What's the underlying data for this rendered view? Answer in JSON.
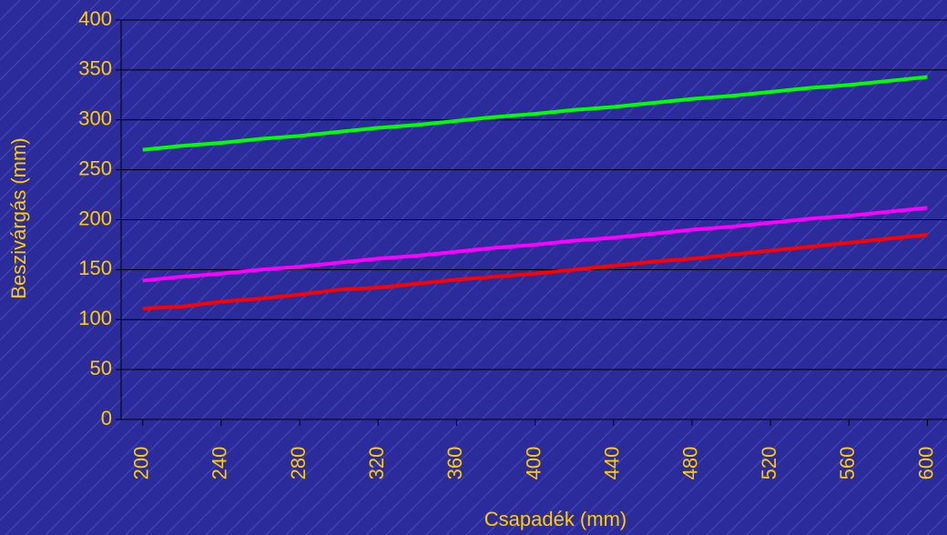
{
  "chart_data": {
    "type": "line",
    "x_label": "Csapadék (mm)",
    "y_label": "Beszivárgás (mm)",
    "x": [
      200,
      220,
      240,
      260,
      280,
      300,
      320,
      340,
      360,
      380,
      400,
      420,
      440,
      460,
      480,
      500,
      520,
      540,
      560,
      580,
      600
    ],
    "series": [
      {
        "color": "#00ff00",
        "values": [
          270,
          274,
          277,
          281,
          284,
          288,
          292,
          295,
          299,
          303,
          306,
          310,
          313,
          317,
          321,
          324,
          328,
          332,
          335,
          339,
          343
        ]
      },
      {
        "color": "#ff00ff",
        "values": [
          139,
          143,
          146,
          150,
          153,
          157,
          161,
          164,
          168,
          172,
          175,
          179,
          182,
          186,
          190,
          193,
          197,
          201,
          204,
          208,
          212
        ]
      },
      {
        "color": "#ff0000",
        "values": [
          111,
          113,
          118,
          121,
          125,
          130,
          132,
          136,
          140,
          143,
          146,
          150,
          154,
          158,
          161,
          165,
          169,
          173,
          177,
          181,
          185
        ]
      }
    ],
    "xlim": [
      189,
      610
    ],
    "xticks": [
      200,
      240,
      280,
      320,
      360,
      400,
      440,
      480,
      520,
      560,
      600
    ],
    "ylim": [
      0,
      400
    ],
    "yticks": [
      0,
      50,
      100,
      150,
      200,
      250,
      300,
      350,
      400
    ],
    "grid": true
  }
}
